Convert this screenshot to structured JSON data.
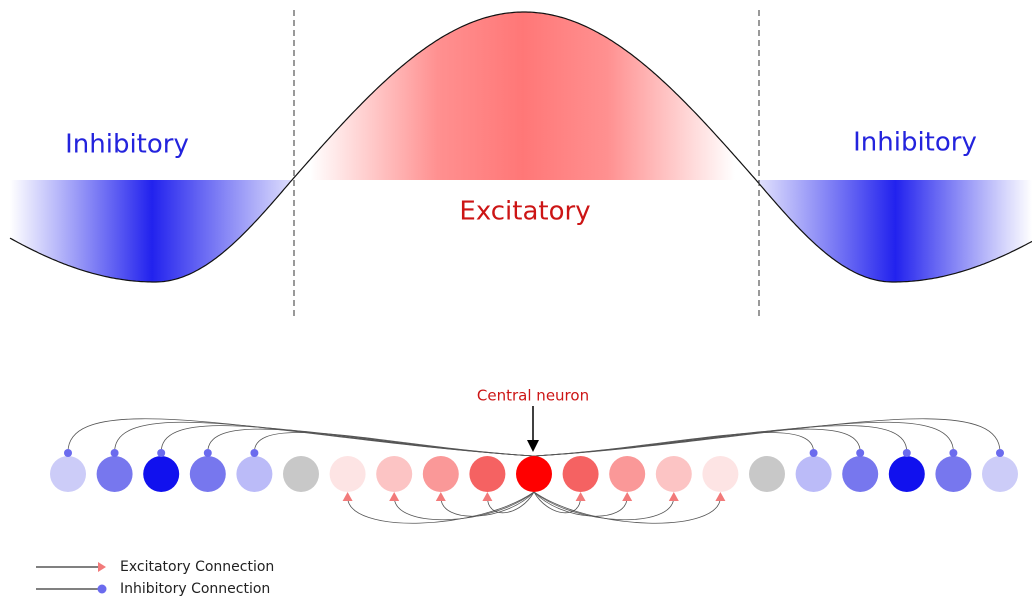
{
  "regions": [
    {
      "label": "Inhibitory"
    },
    {
      "label": "Excitatory"
    },
    {
      "label": "Inhibitory"
    }
  ],
  "central_label": "Central neuron",
  "legend": [
    {
      "label": "Excitatory Connection"
    },
    {
      "label": "Inhibitory Connection"
    }
  ]
}
